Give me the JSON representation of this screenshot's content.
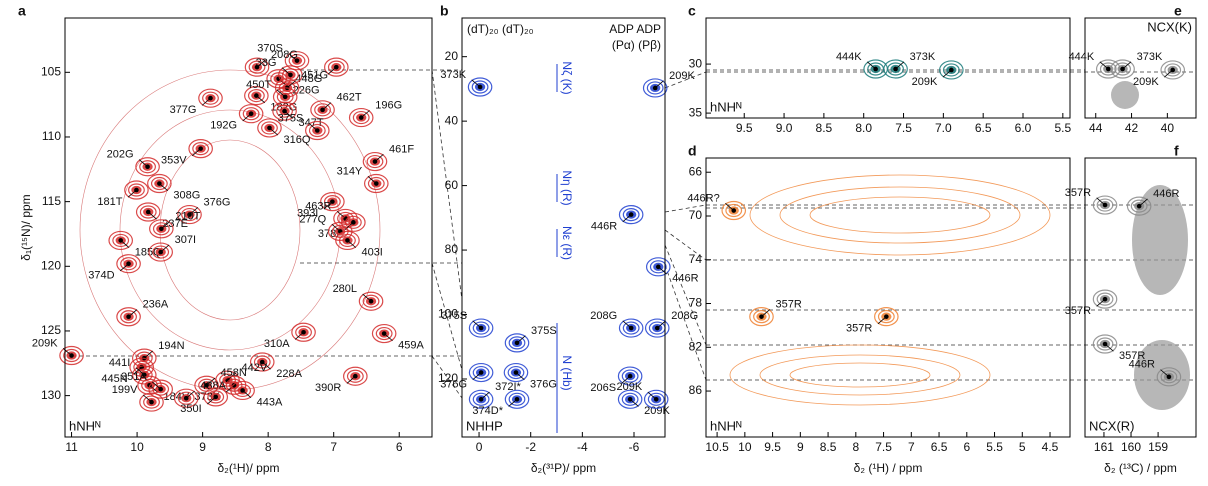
{
  "panels": [
    {
      "letter": "a",
      "tag": "hNHᴺ",
      "xlabel": "δ₂(¹H)/ ppm",
      "ylabel": "δ₁(¹⁵N)/ ppm",
      "color": "#d42a2a",
      "xlim": [
        11.1,
        5.5
      ],
      "ylim": [
        100.8,
        133.2
      ],
      "xticks": [
        11,
        10,
        9,
        8,
        7,
        6
      ],
      "yticks": [
        105,
        110,
        115,
        120,
        125,
        130
      ],
      "peaks": [
        {
          "label": "370S",
          "x": 7.56,
          "y": 104.1
        },
        {
          "label": "208G",
          "x": 8.17,
          "y": 104.6
        },
        {
          "label": "448G",
          "x": 6.96,
          "y": 104.6
        },
        {
          "label": "226G",
          "x": 7.84,
          "y": 105.5
        },
        {
          "label": "33G",
          "x": 7.66,
          "y": 105.2
        },
        {
          "label": "451G",
          "x": 7.71,
          "y": 106.2
        },
        {
          "label": "377G",
          "x": 8.88,
          "y": 107.0
        },
        {
          "label": "182G",
          "x": 8.18,
          "y": 106.8
        },
        {
          "label": "450T",
          "x": 7.74,
          "y": 106.9
        },
        {
          "label": "462T",
          "x": 7.17,
          "y": 107.9
        },
        {
          "label": "192G",
          "x": 8.26,
          "y": 108.2
        },
        {
          "label": "347T",
          "x": 7.75,
          "y": 108.0
        },
        {
          "label": "375S",
          "x": 7.25,
          "y": 109.5
        },
        {
          "label": "196G",
          "x": 6.58,
          "y": 108.5
        },
        {
          "label": "353V",
          "x": 9.03,
          "y": 110.9
        },
        {
          "label": "316Q",
          "x": 7.98,
          "y": 109.3
        },
        {
          "label": "202G",
          "x": 9.84,
          "y": 112.3
        },
        {
          "label": "461F",
          "x": 6.37,
          "y": 111.9
        },
        {
          "label": "181T",
          "x": 10.01,
          "y": 114.1
        },
        {
          "label": "308G",
          "x": 9.66,
          "y": 113.6
        },
        {
          "label": "314Y",
          "x": 6.35,
          "y": 113.6
        },
        {
          "label": "376G",
          "x": 9.2,
          "y": 116.0
        },
        {
          "label": "393I",
          "x": 7.02,
          "y": 115.0
        },
        {
          "label": "237E",
          "x": 9.83,
          "y": 115.8
        },
        {
          "label": "463R",
          "x": 6.82,
          "y": 116.3
        },
        {
          "label": "210T",
          "x": 9.63,
          "y": 117.1
        },
        {
          "label": "378I",
          "x": 6.7,
          "y": 116.6
        },
        {
          "label": "185Q",
          "x": 10.25,
          "y": 118.0
        },
        {
          "label": "277Q",
          "x": 6.9,
          "y": 117.3
        },
        {
          "label": "307I",
          "x": 9.64,
          "y": 118.9
        },
        {
          "label": "374D",
          "x": 10.13,
          "y": 119.8
        },
        {
          "label": "403I",
          "x": 6.79,
          "y": 118.0
        },
        {
          "label": "280L",
          "x": 6.43,
          "y": 122.7
        },
        {
          "label": "236A",
          "x": 10.13,
          "y": 123.9
        },
        {
          "label": "310A",
          "x": 7.46,
          "y": 125.1
        },
        {
          "label": "459A",
          "x": 6.23,
          "y": 125.2
        },
        {
          "label": "209K",
          "x": 11.0,
          "y": 126.9
        },
        {
          "label": "194N",
          "x": 9.89,
          "y": 127.1
        },
        {
          "label": "445N",
          "x": 9.93,
          "y": 127.8
        },
        {
          "label": "228A",
          "x": 8.09,
          "y": 127.4
        },
        {
          "label": "441I",
          "x": 9.89,
          "y": 128.4
        },
        {
          "label": "442V",
          "x": 8.62,
          "y": 128.8
        },
        {
          "label": "390R",
          "x": 6.67,
          "y": 128.5
        },
        {
          "label": "184V",
          "x": 9.81,
          "y": 129.2
        },
        {
          "label": "351A",
          "x": 9.64,
          "y": 129.5
        },
        {
          "label": "458N",
          "x": 8.94,
          "y": 129.2
        },
        {
          "label": "373K",
          "x": 8.52,
          "y": 129.2
        },
        {
          "label": "443A",
          "x": 8.39,
          "y": 129.6
        },
        {
          "label": "199V",
          "x": 9.78,
          "y": 130.5
        },
        {
          "label": "438A",
          "x": 9.25,
          "y": 130.2
        },
        {
          "label": "350I",
          "x": 8.8,
          "y": 130.1
        }
      ]
    },
    {
      "letter": "b",
      "tag": "NHHP",
      "xlabel": "δ₂(³¹P)/ ppm",
      "color": "#1f3fd0",
      "header": [
        "(dT)₂₀ (dT)₂₀",
        "ADP ADP",
        "(Pα) (Pβ)"
      ],
      "sidelabels": [
        "Nζ (K)",
        "Nη (R)",
        "Nε (R)",
        "N (Hb)"
      ],
      "xlim": [
        0.66,
        -7.2
      ],
      "ylim": [
        8,
        138
      ],
      "xticks": [
        0,
        -2,
        -4,
        -6
      ],
      "yticks": [
        20,
        40,
        60,
        80,
        100,
        120
      ],
      "peaks": [
        {
          "label": "373K",
          "x": -0.04,
          "y": 29.4
        },
        {
          "label": "209K",
          "x": -6.82,
          "y": 29.7
        },
        {
          "label": "446R",
          "x": -5.89,
          "y": 69.0
        },
        {
          "label": "446R",
          "x": -6.94,
          "y": 85.2
        },
        {
          "label": "375S",
          "x": -0.08,
          "y": 104.2
        },
        {
          "label": "375S",
          "x": -1.47,
          "y": 108.8
        },
        {
          "label": "376G",
          "x": -0.08,
          "y": 118.0
        },
        {
          "label": "376G",
          "x": -1.43,
          "y": 118.0
        },
        {
          "label": "208G",
          "x": -5.89,
          "y": 104.2
        },
        {
          "label": "208G",
          "x": -6.9,
          "y": 104.2
        },
        {
          "label": "206S",
          "x": -5.85,
          "y": 119.1
        },
        {
          "label": "209K",
          "x": -5.85,
          "y": 126.3
        },
        {
          "label": "209K",
          "x": -6.86,
          "y": 126.3
        },
        {
          "label": "372I*",
          "x": -0.08,
          "y": 126.3
        },
        {
          "label": "374D*",
          "x": -1.47,
          "y": 126.3
        }
      ]
    },
    {
      "letter": "c",
      "tag": "hNHᴺ",
      "color": "#1a7a7a",
      "xlim": [
        9.98,
        5.41
      ],
      "ylim": [
        25.3,
        35.5
      ],
      "xticks": [
        9.5,
        {
          "value": 9,
          "label": "9.0"
        },
        8.5,
        {
          "value": 8,
          "label": "8.0"
        },
        7.5,
        {
          "value": 7,
          "label": "7.0"
        },
        6.5,
        {
          "value": 6,
          "label": "6.0"
        },
        5.5
      ],
      "yticks": [
        30,
        35
      ],
      "peaks": [
        {
          "label": "444K",
          "x": 7.85,
          "y": 30.5
        },
        {
          "label": "373K",
          "x": 7.6,
          "y": 30.5
        },
        {
          "label": "209K",
          "x": 6.9,
          "y": 30.6
        }
      ]
    },
    {
      "letter": "d",
      "tag": "hNHᴺ",
      "xlabel": "δ₂ (¹H) / ppm",
      "color": "#f08030",
      "xlim": [
        10.7,
        4.14
      ],
      "ylim": [
        64.7,
        90.2
      ],
      "xticks": [
        10.5,
        10,
        9.5,
        9,
        8.5,
        8,
        7.5,
        7,
        6.5,
        6,
        5.5,
        5,
        4.5
      ],
      "yticks": [
        66,
        70,
        74,
        78,
        82,
        86
      ],
      "peaks": [
        {
          "label": "446R?",
          "x": 10.2,
          "y": 69.5
        },
        {
          "label": "357R",
          "x": 9.7,
          "y": 79.2
        },
        {
          "label": "357R",
          "x": 7.45,
          "y": 79.2
        }
      ]
    },
    {
      "letter": "e",
      "tag": "NCX(K)",
      "color": "#888888",
      "xlim": [
        44.6,
        38.4
      ],
      "ylim": [
        25.3,
        35.5
      ],
      "xticks": [
        44,
        42,
        40
      ],
      "peaks": [
        {
          "label": "444K",
          "x": 43.3,
          "y": 30.5
        },
        {
          "label": "373K",
          "x": 42.5,
          "y": 30.5
        },
        {
          "label": "209K",
          "x": 39.7,
          "y": 30.6
        }
      ]
    },
    {
      "letter": "f",
      "tag": "NCX(R)",
      "xlabel": "δ₂ (¹³C) / ppm",
      "color": "#888888",
      "xlim": [
        161.7,
        157.6
      ],
      "ylim": [
        64.7,
        90.2
      ],
      "xticks": [
        161,
        160,
        159
      ],
      "peaks": [
        {
          "label": "357R",
          "x": 160.96,
          "y": 69.0
        },
        {
          "label": "446R",
          "x": 159.7,
          "y": 69.1
        },
        {
          "label": "357R",
          "x": 160.96,
          "y": 77.6
        },
        {
          "label": "357R",
          "x": 160.96,
          "y": 81.7
        },
        {
          "label": "446R",
          "x": 158.6,
          "y": 84.7
        }
      ]
    }
  ]
}
